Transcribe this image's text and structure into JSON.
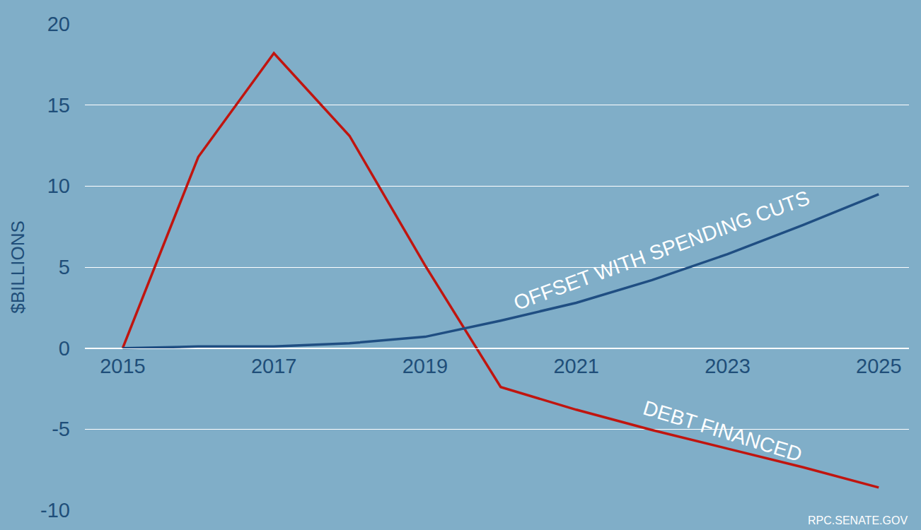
{
  "chart_data": {
    "type": "line",
    "y_label": "$BILLIONS",
    "source": "RPC.SENATE.GOV",
    "x": [
      2015,
      2016,
      2017,
      2018,
      2019,
      2020,
      2021,
      2022,
      2023,
      2024,
      2025
    ],
    "series": [
      {
        "name": "DEBT FINANCED",
        "color": "#c0150f",
        "values": [
          0,
          11.8,
          18.2,
          13.1,
          5.1,
          -2.4,
          -3.8,
          -5.05,
          -6.2,
          -7.35,
          -8.6
        ]
      },
      {
        "name": "OFFSET WITH SPENDING CUTS",
        "color": "#1f4e82",
        "values": [
          0,
          0.1,
          0.1,
          0.3,
          0.7,
          1.7,
          2.8,
          4.2,
          5.8,
          7.6,
          9.5
        ]
      }
    ],
    "xlim": [
      2014.5,
      2025.4
    ],
    "ylim": [
      -10,
      20
    ],
    "xticks": [
      2015,
      2017,
      2019,
      2021,
      2023,
      2025
    ],
    "yticks": [
      -10,
      -5,
      0,
      5,
      10,
      15,
      20
    ],
    "grid": true
  }
}
